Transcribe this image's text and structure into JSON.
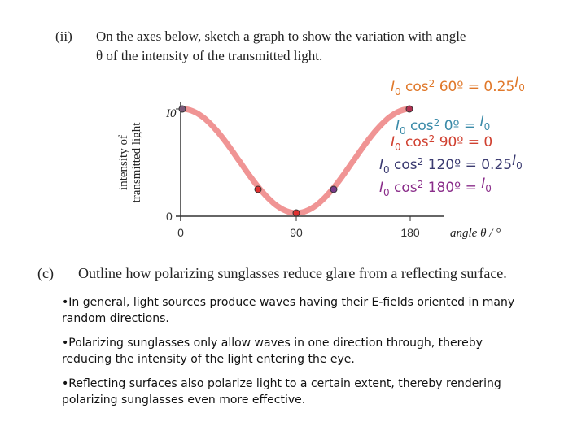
{
  "question_ii": {
    "label": "(ii)",
    "lines": [
      "On the axes below, sketch a graph to show the variation with angle",
      "θ of the intensity of the transmitted light."
    ]
  },
  "graph": {
    "y_label": [
      "intensity of",
      "transmitted light"
    ],
    "y_top": "I0",
    "y_zero": "0",
    "x_ticks": [
      "0",
      "90",
      "180"
    ],
    "x_label": "angle θ / °"
  },
  "annotations": [
    [
      "I",
      "0",
      " cos",
      "2",
      " 60º = 0.25",
      "I",
      "0"
    ],
    [
      "I",
      "0",
      " cos",
      "2",
      " 0º = ",
      "I",
      "0"
    ],
    [
      "I",
      "0",
      " cos",
      "2",
      " 90º = 0",
      "",
      ""
    ],
    [
      "I",
      "0",
      " cos",
      "2",
      " 120º = 0.25",
      "I",
      "0"
    ],
    [
      "I",
      "0",
      " cos",
      "2",
      " 180º = ",
      "I",
      "0"
    ]
  ],
  "question_c": {
    "label": "(c)",
    "text": "Outline how polarizing sunglasses reduce glare from a reflecting  surface."
  },
  "bullets": [
    "•In general, light sources produce waves having their E-fields oriented in many random directions.",
    "•Polarizing sunglasses only allow waves in one direction through, thereby reducing the intensity of the light entering the eye.",
    "•Reflecting surfaces also polarize light to a certain extent, thereby rendering polarizing sunglasses even more effective."
  ]
}
